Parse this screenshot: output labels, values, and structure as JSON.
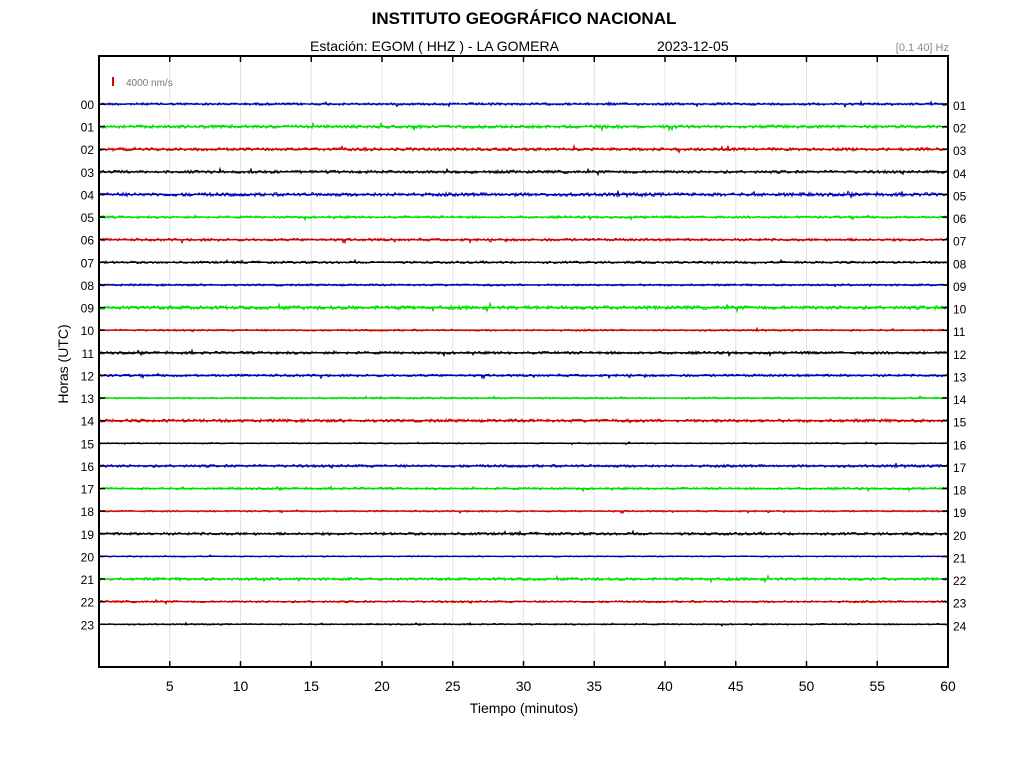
{
  "header": {
    "title": "INSTITUTO GEOGRÁFICO NACIONAL",
    "station": "Estación:  EGOM ( HHZ ) - LA GOMERA",
    "date": "2023-12-05",
    "filter": "[0.1 40] Hz"
  },
  "chart_data": {
    "type": "line",
    "title": "INSTITUTO GEOGRÁFICO NACIONAL",
    "xlabel": "Tiempo (minutos)",
    "ylabel": "Horas (UTC)",
    "xlim": [
      0,
      60
    ],
    "xticks": [
      5,
      10,
      15,
      20,
      25,
      30,
      35,
      40,
      45,
      50,
      55,
      60
    ],
    "left_tick_labels": [
      "00",
      "01",
      "02",
      "03",
      "04",
      "05",
      "06",
      "07",
      "08",
      "09",
      "10",
      "11",
      "12",
      "13",
      "14",
      "15",
      "16",
      "17",
      "18",
      "19",
      "20",
      "21",
      "22",
      "23"
    ],
    "right_tick_labels": [
      "01",
      "02",
      "03",
      "04",
      "05",
      "06",
      "07",
      "08",
      "09",
      "10",
      "11",
      "12",
      "13",
      "14",
      "15",
      "16",
      "17",
      "18",
      "19",
      "20",
      "21",
      "22",
      "23",
      "24"
    ],
    "grid": true,
    "scale_bar": {
      "label": "4000 nm/s",
      "color": "#d40000"
    },
    "trace_colors": [
      "#0000b4",
      "#00dd00",
      "#cc0000",
      "#000000"
    ],
    "series": [
      {
        "hour": "00",
        "color": "#0000b4",
        "noise": 1.2
      },
      {
        "hour": "01",
        "color": "#00dd00",
        "noise": 1.6
      },
      {
        "hour": "02",
        "color": "#cc0000",
        "noise": 1.5
      },
      {
        "hour": "03",
        "color": "#000000",
        "noise": 1.4
      },
      {
        "hour": "04",
        "color": "#0000b4",
        "noise": 1.7
      },
      {
        "hour": "05",
        "color": "#00dd00",
        "noise": 1.2
      },
      {
        "hour": "06",
        "color": "#cc0000",
        "noise": 1.3
      },
      {
        "hour": "07",
        "color": "#000000",
        "noise": 1.1
      },
      {
        "hour": "08",
        "color": "#0000b4",
        "noise": 1.0
      },
      {
        "hour": "09",
        "color": "#00dd00",
        "noise": 1.8
      },
      {
        "hour": "10",
        "color": "#cc0000",
        "noise": 0.9
      },
      {
        "hour": "11",
        "color": "#000000",
        "noise": 1.3
      },
      {
        "hour": "12",
        "color": "#0000b4",
        "noise": 1.2
      },
      {
        "hour": "13",
        "color": "#00dd00",
        "noise": 0.9
      },
      {
        "hour": "14",
        "color": "#cc0000",
        "noise": 1.5
      },
      {
        "hour": "15",
        "color": "#000000",
        "noise": 0.6
      },
      {
        "hour": "16",
        "color": "#0000b4",
        "noise": 1.3
      },
      {
        "hour": "17",
        "color": "#00dd00",
        "noise": 1.1
      },
      {
        "hour": "18",
        "color": "#cc0000",
        "noise": 0.8
      },
      {
        "hour": "19",
        "color": "#000000",
        "noise": 1.3
      },
      {
        "hour": "20",
        "color": "#0000b4",
        "noise": 0.6
      },
      {
        "hour": "21",
        "color": "#00dd00",
        "noise": 1.4
      },
      {
        "hour": "22",
        "color": "#cc0000",
        "noise": 1.0
      },
      {
        "hour": "23",
        "color": "#000000",
        "noise": 0.7
      }
    ]
  }
}
